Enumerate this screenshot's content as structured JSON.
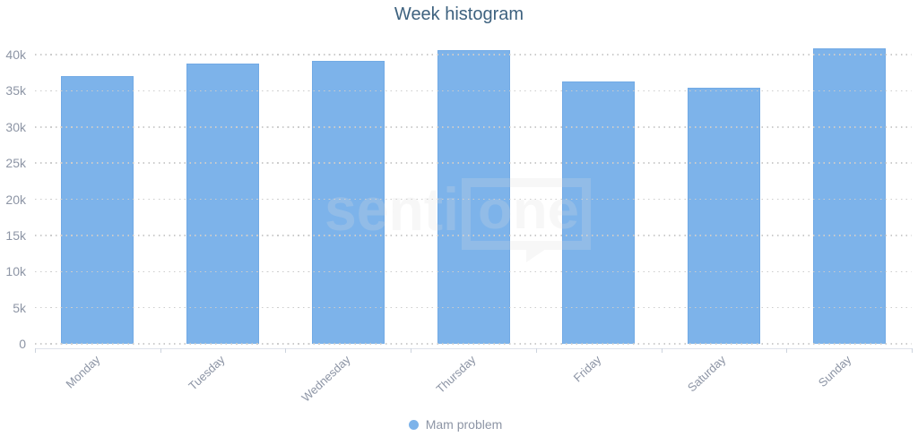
{
  "title": {
    "text": "Week histogram"
  },
  "legend": {
    "items": [
      {
        "label": "Mam problem",
        "marker": "circle-icon",
        "color": "#7db3ea"
      }
    ]
  },
  "watermark": {
    "brand": "sentione",
    "part1": "senti",
    "part2": "one"
  },
  "colors": {
    "bar_fill": "#7db3ea",
    "bar_border": "#72aae5",
    "grid_dots": "#cccccc",
    "axis_line": "#dfe3ea",
    "tick": "#ccd3dd",
    "label_text": "#8d95a5",
    "title_text": "#3e627f",
    "watermark": "#dedede"
  },
  "chart_data": {
    "type": "bar",
    "title": "Week histogram",
    "categories": [
      "Monday",
      "Tuesday",
      "Wednesday",
      "Thursday",
      "Friday",
      "Saturday",
      "Sunday"
    ],
    "series": [
      {
        "name": "Mam problem",
        "color": "#7db3ea",
        "values": [
          37050,
          38780,
          39150,
          40680,
          36250,
          35360,
          40900
        ]
      }
    ],
    "xlabel": "",
    "ylabel": "",
    "ylim": [
      0,
      42000
    ],
    "yticks": [
      0,
      5000,
      10000,
      15000,
      20000,
      25000,
      30000,
      35000,
      40000
    ],
    "ytick_labels": [
      "0",
      "5k",
      "10k",
      "15k",
      "20k",
      "25k",
      "30k",
      "35k",
      "40k"
    ],
    "grid": "horizontal-dotted",
    "legend_position": "bottom-center",
    "x_label_rotation": -43
  }
}
